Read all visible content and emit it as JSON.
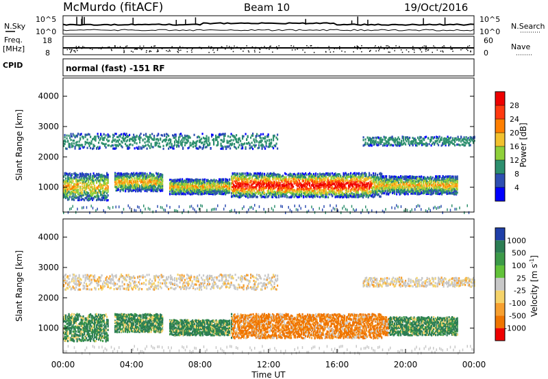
{
  "header": {
    "station": "McMurdo (fitACF)",
    "beam": "Beam 10",
    "date": "19/Oct/2016"
  },
  "top_panels": {
    "nsky_label": "N.Sky",
    "nsearch_label": "N.Search",
    "noise_tick_top": "10^5",
    "noise_tick_bottom": "10^0",
    "freq_label_1": "Freq.",
    "freq_label_2": "[MHz]",
    "freq_tick_top": "18",
    "freq_tick_bottom": "8",
    "nave_label": "Nave",
    "nave_tick_top": "60",
    "nave_tick_bottom": "0",
    "cpid_label": "CPID",
    "cpid_text": "normal (fast) -151 RF"
  },
  "chart_data": [
    {
      "type": "heatmap",
      "variable": "Power",
      "ylabel": "Slant Range [km]",
      "ylim": [
        180,
        4600
      ],
      "yticks": [
        "1000",
        "2000",
        "3000",
        "4000"
      ],
      "colorbar_label": "Power [dB]",
      "colorbar_ticks": [
        "4",
        "8",
        "12",
        "16",
        "20",
        "24",
        "28"
      ],
      "colorbar_colors": [
        "#0000ff",
        "#2e4fb2",
        "#2d8f6e",
        "#8fd03a",
        "#f2c12e",
        "#ff7f00",
        "#ff3a10",
        "#ee0000"
      ],
      "echo_bands": [
        {
          "t_start": 0.0,
          "t_end": 2.6,
          "r_lo": 600,
          "r_hi": 1500
        },
        {
          "t_start": 3.0,
          "t_end": 5.8,
          "r_lo": 900,
          "r_hi": 1500
        },
        {
          "t_start": 6.2,
          "t_end": 9.7,
          "r_lo": 800,
          "r_hi": 1300
        },
        {
          "t_start": 9.8,
          "t_end": 18.6,
          "r_lo": 700,
          "r_hi": 1500
        },
        {
          "t_start": 18.6,
          "t_end": 23.0,
          "r_lo": 800,
          "r_hi": 1400
        },
        {
          "t_start": 0.0,
          "t_end": 12.5,
          "r_lo": 2300,
          "r_hi": 2800
        },
        {
          "t_start": 17.5,
          "t_end": 24.0,
          "r_lo": 2400,
          "r_hi": 2700
        }
      ]
    },
    {
      "type": "heatmap",
      "variable": "Velocity",
      "ylabel": "Slant Range [km]",
      "ylim": [
        180,
        4600
      ],
      "yticks": [
        "1000",
        "2000",
        "3000",
        "4000"
      ],
      "colorbar_label": "Velocity [m s^-1]",
      "colorbar_ticks": [
        "1000",
        "500",
        "100",
        "25",
        "-25",
        "-100",
        "-500",
        "-1000"
      ],
      "colorbar_colors": [
        "#1f3fa8",
        "#2c7d54",
        "#3c9a48",
        "#62c23a",
        "#c8c8c8",
        "#f5d36a",
        "#f7a030",
        "#ef7500",
        "#ee0000"
      ],
      "xlabel": "Time UT",
      "xticks": [
        "00:00",
        "04:00",
        "08:00",
        "12:00",
        "16:00",
        "20:00",
        "00:00"
      ],
      "xlim": [
        0,
        24
      ]
    }
  ]
}
